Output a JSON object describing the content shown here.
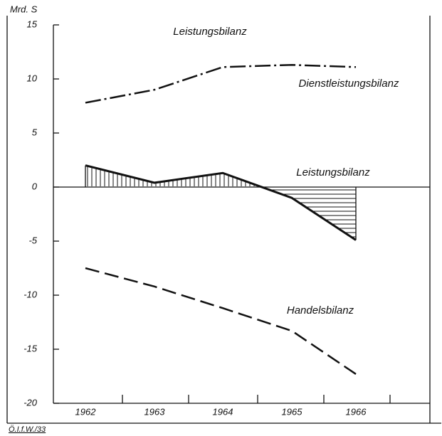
{
  "chart_data": {
    "type": "line",
    "title": "Leistungsbilanz",
    "y_label": "Mrd. S",
    "categories": [
      "1962",
      "1963",
      "1964",
      "1965",
      "1966"
    ],
    "series": [
      {
        "name": "Dienstleistungsbilanz",
        "color": "#111111",
        "line_style": "dash-dot",
        "values": [
          7.8,
          9.0,
          11.1,
          11.3,
          11.1
        ]
      },
      {
        "name": "Leistungsbilanz",
        "color": "#111111",
        "line_style": "solid",
        "hatched": true,
        "values": [
          2.0,
          0.4,
          1.3,
          -1.0,
          -4.9
        ]
      },
      {
        "name": "Handelsbilanz",
        "color": "#111111",
        "line_style": "dashed",
        "values": [
          -7.5,
          -9.2,
          -11.2,
          -13.3,
          -17.3
        ]
      }
    ],
    "ylim": [
      -20,
      15
    ],
    "yticks": [
      15,
      10,
      5,
      0,
      -5,
      -10,
      -15,
      -20
    ],
    "source": "Ö.I.f.W./33"
  }
}
